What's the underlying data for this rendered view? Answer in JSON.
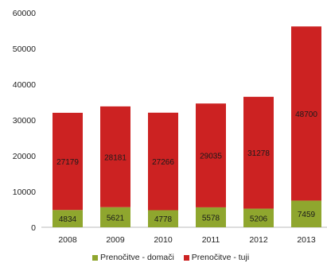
{
  "chart_data": {
    "type": "bar",
    "stacked": true,
    "categories": [
      "2008",
      "2009",
      "2010",
      "2011",
      "2012",
      "2013"
    ],
    "series": [
      {
        "name": "Prenočitve - domači",
        "values": [
          4834,
          5621,
          4778,
          5578,
          5206,
          7459
        ],
        "color": "#8fa62e"
      },
      {
        "name": "Prenočitve - tuji",
        "values": [
          27179,
          28181,
          27266,
          29035,
          31278,
          48700
        ],
        "color": "#cc2222"
      }
    ],
    "y_ticks": [
      "0",
      "10000",
      "20000",
      "30000",
      "40000",
      "50000",
      "60000"
    ],
    "ylim": [
      0,
      60000
    ],
    "grid": false,
    "legend_position": "bottom"
  }
}
